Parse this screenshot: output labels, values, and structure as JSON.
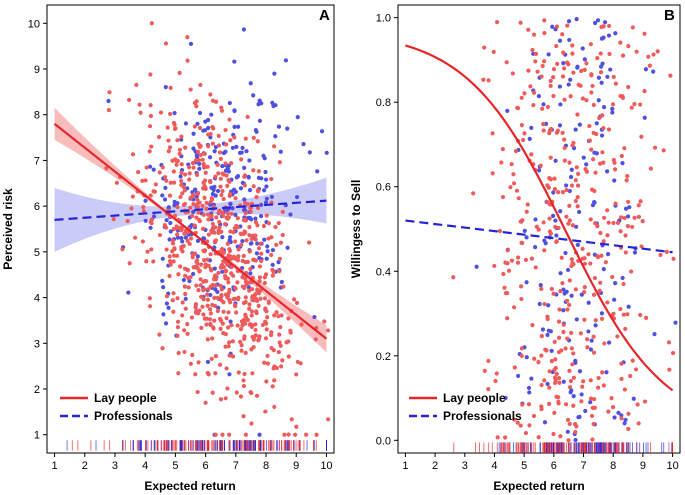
{
  "colors": {
    "lay": "#e8262a",
    "pro": "#2525d6",
    "lay_point": "#ef5b5b",
    "pro_point": "#4f4fe0",
    "lay_band": "#f6a5a5",
    "pro_band": "#b9b9f5"
  },
  "chart_data": [
    {
      "type": "scatter",
      "panel_label": "A",
      "xlabel": "Expected return",
      "ylabel": "Perceived risk",
      "xlim": [
        0.75,
        10.25
      ],
      "ylim": [
        0.6,
        10.4
      ],
      "xticks": [
        "1",
        "2",
        "3",
        "4",
        "5",
        "6",
        "7",
        "8",
        "9",
        "10"
      ],
      "yticks": [
        "1",
        "2",
        "3",
        "4",
        "5",
        "6",
        "7",
        "8",
        "9",
        "10"
      ],
      "legend_position": "bottom-left",
      "series": [
        {
          "name": "Lay people",
          "key": "lay",
          "style": "solid",
          "fit": "linear",
          "x": [
            1,
            10
          ],
          "y": [
            7.8,
            3.1
          ],
          "ci_halfwidth": [
            0.35,
            0.03,
            0.3
          ]
        },
        {
          "name": "Professionals",
          "key": "pro",
          "style": "dashed",
          "fit": "linear",
          "x": [
            1,
            10
          ],
          "y": [
            5.7,
            6.12
          ],
          "ci_halfwidth": [
            0.7,
            0.1,
            0.5
          ]
        }
      ],
      "scatter": {
        "lay_count": 720,
        "pro_count": 300,
        "lay_x_mean": 6.4,
        "lay_x_sd": 1.3,
        "pro_x_mean": 6.6,
        "pro_x_sd": 1.2
      }
    },
    {
      "type": "scatter",
      "panel_label": "B",
      "xlabel": "Expected return",
      "ylabel": "Willingess to Sell",
      "xlim": [
        0.75,
        10.25
      ],
      "ylim": [
        -0.03,
        1.03
      ],
      "xticks": [
        "1",
        "2",
        "3",
        "4",
        "5",
        "6",
        "7",
        "8",
        "9",
        "10"
      ],
      "yticks": [
        "0.0",
        "0.2",
        "0.4",
        "0.6",
        "0.8",
        "1.0"
      ],
      "legend_position": "bottom-left",
      "series": [
        {
          "name": "Lay people",
          "key": "lay",
          "style": "solid",
          "fit": "logistic",
          "x0": 6.4,
          "k": 0.6,
          "x_range": [
            1,
            10
          ]
        },
        {
          "name": "Professionals",
          "key": "pro",
          "style": "dashed",
          "fit": "linear",
          "x": [
            1,
            10
          ],
          "y": [
            0.52,
            0.445
          ]
        }
      ],
      "scatter": {
        "lay_count": 420,
        "pro_count": 180,
        "lay_x_mean": 6.6,
        "lay_x_sd": 1.4,
        "pro_x_mean": 6.8,
        "pro_x_sd": 1.1
      }
    }
  ]
}
